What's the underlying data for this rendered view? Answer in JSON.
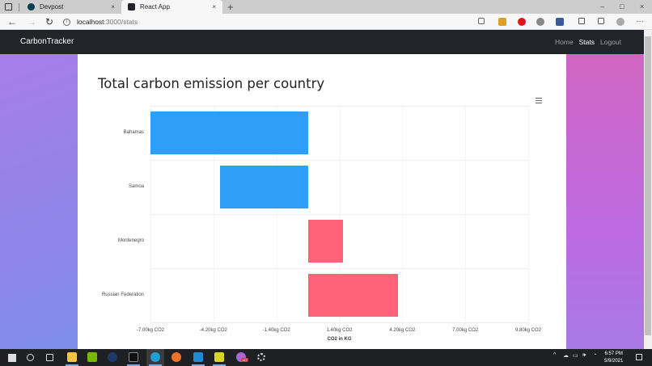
{
  "browser": {
    "tabs": [
      {
        "title": "Devpost",
        "favicon_color": "#003e54",
        "active": false
      },
      {
        "title": "React App",
        "favicon_color": "#20232a",
        "active": true
      }
    ],
    "new_tab_icon": "+",
    "close_icon": "×",
    "window_controls": {
      "minimize": "–",
      "maximize": "□",
      "close": "×"
    },
    "address": {
      "host": "localhost",
      "path": ":3000/stats"
    },
    "nav": {
      "back": "←",
      "forward": "→",
      "reload": "↻"
    }
  },
  "navbar": {
    "brand": "CarbonTracker",
    "links": [
      {
        "label": "Home",
        "active": false
      },
      {
        "label": "Stats",
        "active": true
      },
      {
        "label": "Logout",
        "active": false
      }
    ]
  },
  "page": {
    "title": "Total carbon emission per country"
  },
  "chart_data": {
    "type": "bar",
    "orientation": "horizontal",
    "title": "Total carbon emission per country",
    "xlabel": "CO2 in KG",
    "ylabel": "",
    "categories": [
      "Bahamas",
      "Samoa",
      "Montenegro",
      "Russian Federation"
    ],
    "values": [
      -7.0,
      -3.9,
      1.55,
      4.0
    ],
    "colors": [
      "#2e9ff9",
      "#2e9ff9",
      "#ff6178",
      "#ff6178"
    ],
    "xlim": [
      -7.0,
      9.8
    ],
    "xticks": [
      -7.0,
      -4.2,
      -1.4,
      1.4,
      4.2,
      7.0,
      9.8
    ],
    "xtick_labels": [
      "-7.00kg CO2",
      "-4.20kg CO2",
      "-1.40kg CO2",
      "1.40kg CO2",
      "4.20kg CO2",
      "7.00kg CO2",
      "9.80kg CO2"
    ],
    "grid": true,
    "legend": "none"
  },
  "taskbar": {
    "clock_time": "6:57 PM",
    "clock_date": "5/9/2021",
    "badge_count": "147"
  }
}
